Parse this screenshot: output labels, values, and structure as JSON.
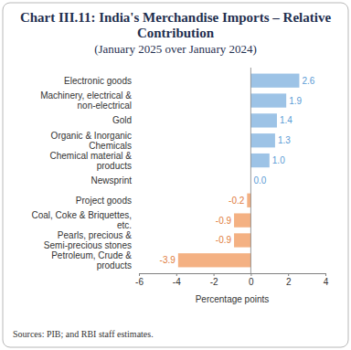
{
  "chart_data": {
    "type": "bar",
    "orientation": "horizontal",
    "title": "Chart III.11: India's Merchandise Imports – Relative Contribution",
    "subtitle": "(January 2025 over January 2024)",
    "categories": [
      "Electronic goods",
      "Machinery, electrical & non-electrical",
      "Gold",
      "Organic & Inorganic Chemicals",
      "Chemical material & products",
      "Newsprint",
      "Project goods",
      "Coal, Coke & Briquettes, etc.",
      "Pearls, precious & Semi-precious stones",
      "Petroleum, Crude & products"
    ],
    "values": [
      2.6,
      1.9,
      1.4,
      1.3,
      1.0,
      0.0,
      -0.2,
      -0.9,
      -0.9,
      -3.9
    ],
    "value_labels": [
      "2.6",
      "1.9",
      "1.4",
      "1.3",
      "1.0",
      "0.0",
      "-0.2",
      "-0.9",
      "-0.9",
      "-3.9"
    ],
    "colors": [
      "#9dc3e6",
      "#9dc3e6",
      "#9dc3e6",
      "#9dc3e6",
      "#9dc3e6",
      "#9dc3e6",
      "#f4b183",
      "#f4b183",
      "#f4b183",
      "#f4b183"
    ],
    "x_label": "Percentage points",
    "xlim": [
      -6,
      4
    ],
    "xticks": [
      -6,
      -4,
      -2,
      0,
      2,
      4
    ],
    "grid": false,
    "data_labels": true,
    "source": "Sources: PIB; and RBI staff estimates."
  }
}
